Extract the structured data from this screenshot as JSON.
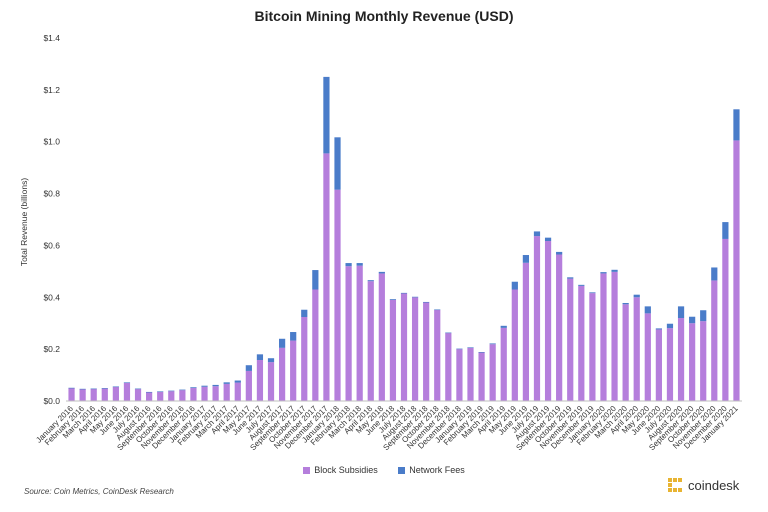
{
  "chart_data": {
    "type": "bar",
    "stacked": true,
    "title": "Bitcoin Mining Monthly Revenue (USD)",
    "xlabel": "",
    "ylabel": "Total Revenue (billions)",
    "ylim": [
      0,
      1.4
    ],
    "yticks": [
      0,
      0.2,
      0.4,
      0.6,
      0.8,
      1.0,
      1.2,
      1.4
    ],
    "ytick_labels": [
      "$0.0",
      "$0.2",
      "$0.4",
      "$0.6",
      "$0.8",
      "$1.0",
      "$1.2",
      "$1.4"
    ],
    "grid": false,
    "legend_position": "bottom",
    "categories": [
      "January 2016",
      "February 2016",
      "March 2016",
      "April 2016",
      "May 2016",
      "June 2016",
      "July 2016",
      "August 2016",
      "September 2016",
      "October 2016",
      "November 2016",
      "December 2016",
      "January 2017",
      "February 2017",
      "March 2017",
      "April 2017",
      "May 2017",
      "June 2017",
      "July 2017",
      "August 2017",
      "September 2017",
      "October 2017",
      "November 2017",
      "December 2017",
      "January 2018",
      "February 2018",
      "March 2018",
      "April 2018",
      "May 2018",
      "June 2018",
      "July 2018",
      "August 2018",
      "September 2018",
      "October 2018",
      "November 2018",
      "December 2018",
      "January 2019",
      "February 2019",
      "March 2019",
      "April 2019",
      "May 2019",
      "June 2019",
      "July 2019",
      "August 2019",
      "September 2019",
      "October 2019",
      "November 2019",
      "December 2019",
      "January 2020",
      "February 2020",
      "March 2020",
      "April 2020",
      "May 2020",
      "June 2020",
      "July 2020",
      "August 2020",
      "September 2020",
      "October 2020",
      "November 2020",
      "December 2020",
      "January 2021"
    ],
    "series": [
      {
        "name": "Block Subsidies",
        "color": "#b57edc",
        "values": [
          0.05,
          0.046,
          0.047,
          0.048,
          0.054,
          0.07,
          0.046,
          0.033,
          0.035,
          0.038,
          0.042,
          0.05,
          0.055,
          0.057,
          0.066,
          0.071,
          0.116,
          0.158,
          0.15,
          0.205,
          0.233,
          0.324,
          0.43,
          0.955,
          0.815,
          0.52,
          0.522,
          0.462,
          0.492,
          0.39,
          0.415,
          0.4,
          0.38,
          0.351,
          0.262,
          0.2,
          0.205,
          0.187,
          0.219,
          0.282,
          0.43,
          0.533,
          0.636,
          0.617,
          0.565,
          0.472,
          0.444,
          0.416,
          0.492,
          0.498,
          0.373,
          0.4,
          0.338,
          0.276,
          0.281,
          0.32,
          0.3,
          0.308,
          0.465,
          0.625,
          1.005
        ]
      },
      {
        "name": "Network Fees",
        "color": "#4a7cc9",
        "values": [
          0.001,
          0.001,
          0.001,
          0.002,
          0.002,
          0.002,
          0.002,
          0.002,
          0.002,
          0.002,
          0.002,
          0.003,
          0.004,
          0.005,
          0.006,
          0.008,
          0.022,
          0.022,
          0.015,
          0.035,
          0.033,
          0.028,
          0.075,
          0.295,
          0.202,
          0.012,
          0.01,
          0.004,
          0.006,
          0.003,
          0.002,
          0.002,
          0.002,
          0.002,
          0.002,
          0.002,
          0.002,
          0.002,
          0.003,
          0.008,
          0.03,
          0.03,
          0.018,
          0.013,
          0.01,
          0.005,
          0.004,
          0.003,
          0.005,
          0.008,
          0.005,
          0.01,
          0.027,
          0.004,
          0.017,
          0.045,
          0.025,
          0.042,
          0.05,
          0.065,
          0.12
        ]
      }
    ]
  },
  "source_note": "Source: Coin Metrics, CoinDesk Research",
  "brand": {
    "name": "coindesk",
    "color": "#e8b432"
  }
}
